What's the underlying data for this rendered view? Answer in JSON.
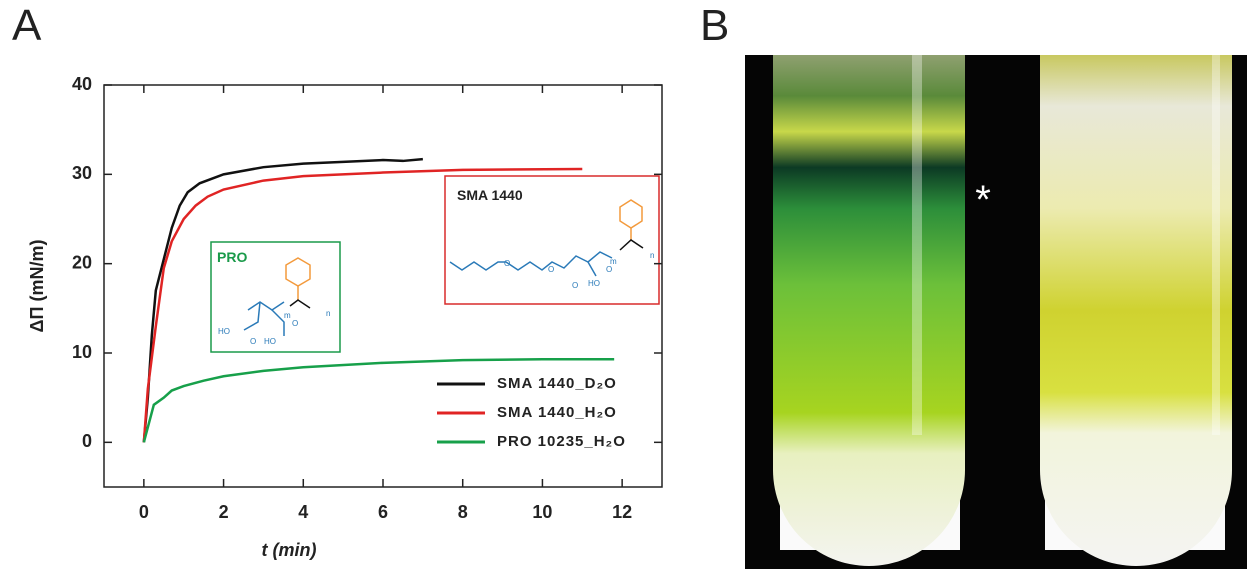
{
  "panels": {
    "a": "A",
    "b": "B"
  },
  "photo": {
    "marker": "*"
  },
  "insets": [
    {
      "title": "PRO",
      "color": "#1a9a4a",
      "atoms": [
        "HO",
        "O",
        "HO",
        "O",
        "m",
        "n"
      ]
    },
    {
      "title": "SMA 1440",
      "color": "#d92b2b",
      "atoms": [
        "O",
        "O",
        "O",
        "HO",
        "O",
        "m",
        "n"
      ]
    }
  ],
  "chart_data": {
    "type": "line",
    "x_label": "t (min)",
    "y_label": "ΔΠ (mN/m)",
    "xlim": [
      -1,
      13
    ],
    "ylim": [
      -5,
      40
    ],
    "xticks": [
      0,
      2,
      4,
      6,
      8,
      10,
      12
    ],
    "yticks": [
      0,
      10,
      20,
      30,
      40
    ],
    "legend": "lower right",
    "series": [
      {
        "name": "SMA 1440_D₂O",
        "color": "#111111",
        "x": [
          0,
          0.1,
          0.2,
          0.3,
          0.5,
          0.7,
          0.9,
          1.1,
          1.4,
          2,
          3,
          4,
          5,
          6,
          6.5,
          7
        ],
        "values": [
          0,
          5,
          12,
          17,
          20.5,
          24,
          26.5,
          28,
          29,
          30,
          30.8,
          31.2,
          31.4,
          31.6,
          31.5,
          31.7
        ]
      },
      {
        "name": "SMA 1440_H₂O",
        "color": "#e02424",
        "x": [
          0,
          0.1,
          0.3,
          0.5,
          0.7,
          1,
          1.3,
          1.6,
          2,
          3,
          4,
          6,
          8,
          11
        ],
        "values": [
          0,
          6,
          13,
          19.5,
          22.5,
          25,
          26.5,
          27.5,
          28.3,
          29.3,
          29.8,
          30.2,
          30.5,
          30.6
        ]
      },
      {
        "name": "PRO 10235_H₂O",
        "color": "#17a04a",
        "x": [
          0,
          0.25,
          0.5,
          0.7,
          1,
          1.5,
          2,
          3,
          4,
          6,
          8,
          10,
          11.8
        ],
        "values": [
          0,
          4.2,
          5,
          5.8,
          6.3,
          6.9,
          7.4,
          8,
          8.4,
          8.9,
          9.2,
          9.3,
          9.3
        ]
      }
    ]
  }
}
